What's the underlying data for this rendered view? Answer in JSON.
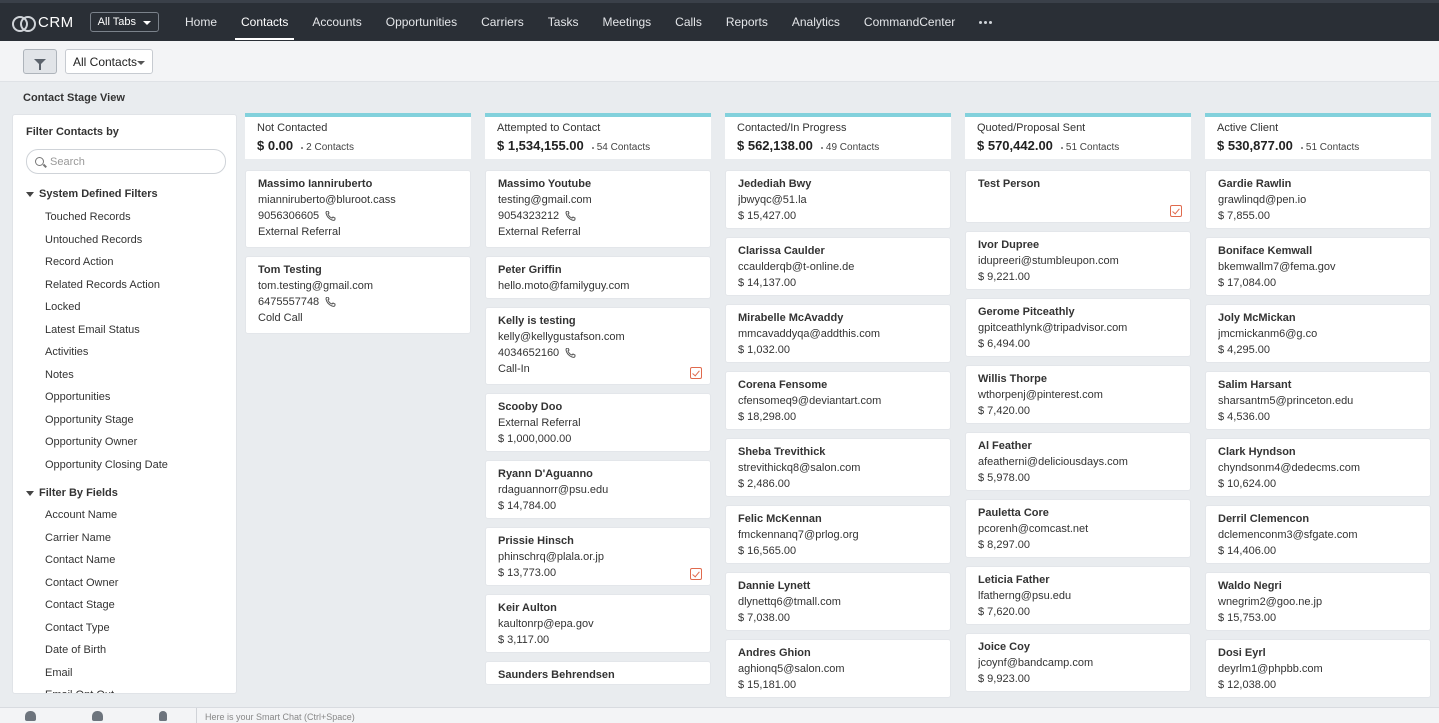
{
  "app": {
    "title": "CRM",
    "all_tabs": "All Tabs"
  },
  "nav": [
    "Home",
    "Contacts",
    "Accounts",
    "Opportunities",
    "Carriers",
    "Tasks",
    "Meetings",
    "Calls",
    "Reports",
    "Analytics",
    "CommandCenter"
  ],
  "active_nav": "Contacts",
  "toolbar": {
    "view_select": "All Contacts"
  },
  "page": {
    "stage_view_label": "Contact Stage View"
  },
  "filter_panel": {
    "title": "Filter Contacts by",
    "search_placeholder": "Search",
    "system_section": "System Defined Filters",
    "system_items": [
      "Touched Records",
      "Untouched Records",
      "Record Action",
      "Related Records Action",
      "Locked",
      "Latest Email Status",
      "Activities",
      "Notes",
      "Opportunities",
      "Opportunity Stage",
      "Opportunity Owner",
      "Opportunity Closing Date"
    ],
    "fields_section": "Filter By Fields",
    "field_items": [
      "Account Name",
      "Carrier Name",
      "Contact Name",
      "Contact Owner",
      "Contact Stage",
      "Contact Type",
      "Date of Birth",
      "Email",
      "Email Opt Out"
    ]
  },
  "columns": [
    {
      "title": "Not Contacted",
      "amount": "$ 0.00",
      "count": "2 Contacts",
      "cards": [
        {
          "name": "Massimo Ianniruberto",
          "lines": [
            "mianniruberto@bluroot.cass",
            "9056306605",
            "External Referral"
          ],
          "phone": true,
          "task": false
        },
        {
          "name": "Tom Testing",
          "lines": [
            "tom.testing@gmail.com",
            "6475557748",
            "Cold Call"
          ],
          "phone": true,
          "task": false
        }
      ]
    },
    {
      "title": "Attempted to Contact",
      "amount": "$ 1,534,155.00",
      "count": "54 Contacts",
      "cards": [
        {
          "name": "Massimo Youtube",
          "lines": [
            "testing@gmail.com",
            "9054323212",
            "External Referral"
          ],
          "phone": true,
          "task": false
        },
        {
          "name": "Peter Griffin",
          "lines": [
            "hello.moto@familyguy.com"
          ],
          "phone": false,
          "task": false
        },
        {
          "name": "Kelly is testing",
          "lines": [
            "kelly@kellygustafson.com",
            "4034652160",
            "Call-In"
          ],
          "phone": true,
          "task": true
        },
        {
          "name": "Scooby Doo",
          "lines": [
            "External Referral",
            "$ 1,000,000.00"
          ],
          "phone": false,
          "task": false
        },
        {
          "name": "Ryann D'Aguanno",
          "lines": [
            "rdaguannorr@psu.edu",
            "$ 14,784.00"
          ],
          "phone": false,
          "task": false
        },
        {
          "name": "Prissie Hinsch",
          "lines": [
            "phinschrq@plala.or.jp",
            "$ 13,773.00"
          ],
          "phone": false,
          "task": true
        },
        {
          "name": "Keir Aulton",
          "lines": [
            "kaultonrp@epa.gov",
            "$ 3,117.00"
          ],
          "phone": false,
          "task": false
        },
        {
          "name": "Saunders Behrendsen",
          "lines": [],
          "phone": false,
          "task": false
        }
      ]
    },
    {
      "title": "Contacted/In Progress",
      "amount": "$ 562,138.00",
      "count": "49 Contacts",
      "cards": [
        {
          "name": "Jedediah Bwy",
          "lines": [
            "jbwyqc@51.la",
            "$ 15,427.00"
          ],
          "phone": false,
          "task": false
        },
        {
          "name": "Clarissa Caulder",
          "lines": [
            "ccaulderqb@t-online.de",
            "$ 14,137.00"
          ],
          "phone": false,
          "task": false
        },
        {
          "name": "Mirabelle McAvaddy",
          "lines": [
            "mmcavaddyqa@addthis.com",
            "$ 1,032.00"
          ],
          "phone": false,
          "task": false
        },
        {
          "name": "Corena Fensome",
          "lines": [
            "cfensomeq9@deviantart.com",
            "$ 18,298.00"
          ],
          "phone": false,
          "task": false
        },
        {
          "name": "Sheba Trevithick",
          "lines": [
            "strevithickq8@salon.com",
            "$ 2,486.00"
          ],
          "phone": false,
          "task": false
        },
        {
          "name": "Felic McKennan",
          "lines": [
            "fmckennanq7@prlog.org",
            "$ 16,565.00"
          ],
          "phone": false,
          "task": false
        },
        {
          "name": "Dannie Lynett",
          "lines": [
            "dlynettq6@tmall.com",
            "$ 7,038.00"
          ],
          "phone": false,
          "task": false
        },
        {
          "name": "Andres Ghion",
          "lines": [
            "aghionq5@salon.com",
            "$ 15,181.00"
          ],
          "phone": false,
          "task": false
        }
      ]
    },
    {
      "title": "Quoted/Proposal Sent",
      "amount": "$ 570,442.00",
      "count": "51 Contacts",
      "cards": [
        {
          "name": "Test Person",
          "lines": [],
          "phone": false,
          "task": true
        },
        {
          "name": "Ivor Dupree",
          "lines": [
            "idupreeri@stumbleupon.com",
            "$ 9,221.00"
          ],
          "phone": false,
          "task": false
        },
        {
          "name": "Gerome Pitceathly",
          "lines": [
            "gpitceathlynk@tripadvisor.com",
            "$ 6,494.00"
          ],
          "phone": false,
          "task": false
        },
        {
          "name": "Willis Thorpe",
          "lines": [
            "wthorpenj@pinterest.com",
            "$ 7,420.00"
          ],
          "phone": false,
          "task": false
        },
        {
          "name": "Al Feather",
          "lines": [
            "afeatherni@deliciousdays.com",
            "$ 5,978.00"
          ],
          "phone": false,
          "task": false
        },
        {
          "name": "Pauletta Core",
          "lines": [
            "pcorenh@comcast.net",
            "$ 8,297.00"
          ],
          "phone": false,
          "task": false
        },
        {
          "name": "Leticia Father",
          "lines": [
            "lfatherng@psu.edu",
            "$ 7,620.00"
          ],
          "phone": false,
          "task": false
        },
        {
          "name": "Joice Coy",
          "lines": [
            "jcoynf@bandcamp.com",
            "$ 9,923.00"
          ],
          "phone": false,
          "task": false
        }
      ]
    },
    {
      "title": "Active Client",
      "amount": "$ 530,877.00",
      "count": "51 Contacts",
      "cards": [
        {
          "name": "Gardie Rawlin",
          "lines": [
            "grawlinqd@pen.io",
            "$ 7,855.00"
          ],
          "phone": false,
          "task": false
        },
        {
          "name": "Boniface Kemwall",
          "lines": [
            "bkemwallm7@fema.gov",
            "$ 17,084.00"
          ],
          "phone": false,
          "task": false
        },
        {
          "name": "Joly McMickan",
          "lines": [
            "jmcmickanm6@g.co",
            "$ 4,295.00"
          ],
          "phone": false,
          "task": false
        },
        {
          "name": "Salim Harsant",
          "lines": [
            "sharsantm5@princeton.edu",
            "$ 4,536.00"
          ],
          "phone": false,
          "task": false
        },
        {
          "name": "Clark Hyndson",
          "lines": [
            "chyndsonm4@dedecms.com",
            "$ 10,624.00"
          ],
          "phone": false,
          "task": false
        },
        {
          "name": "Derril Clemencon",
          "lines": [
            "dclemenconm3@sfgate.com",
            "$ 14,406.00"
          ],
          "phone": false,
          "task": false
        },
        {
          "name": "Waldo Negri",
          "lines": [
            "wnegrim2@goo.ne.jp",
            "$ 15,753.00"
          ],
          "phone": false,
          "task": false
        },
        {
          "name": "Dosi Eyrl",
          "lines": [
            "deyrlm1@phpbb.com",
            "$ 12,038.00"
          ],
          "phone": false,
          "task": false
        }
      ]
    }
  ],
  "bottombar": {
    "chat_hint": "Here is your Smart Chat (Ctrl+Space)"
  }
}
